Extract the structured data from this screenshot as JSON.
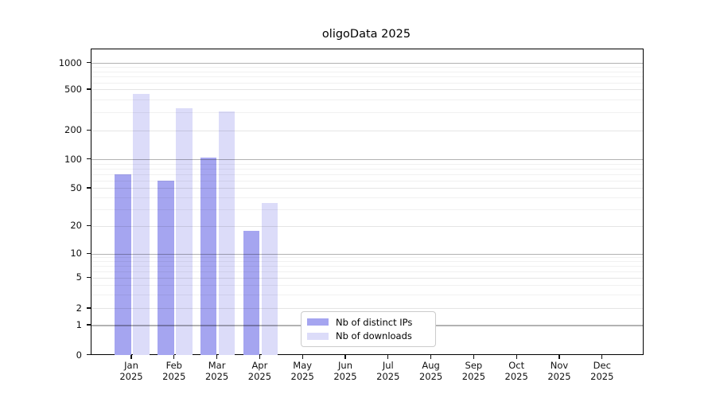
{
  "figure": {
    "background": "#ffffff"
  },
  "chart_data": {
    "type": "bar",
    "title": "oligoData 2025",
    "scale": "symlog",
    "categories": [
      "Jan",
      "Feb",
      "Mar",
      "Apr",
      "May",
      "Jun",
      "Jul",
      "Aug",
      "Sep",
      "Oct",
      "Nov",
      "Dec"
    ],
    "category_year": "2025",
    "series": [
      {
        "name": "Nb of distinct IPs",
        "color": "#a5a5f0",
        "values": [
          70,
          60,
          105,
          18,
          0,
          0,
          0,
          0,
          0,
          0,
          0,
          0
        ]
      },
      {
        "name": "Nb of downloads",
        "color": "#dcdcf9",
        "values": [
          460,
          330,
          310,
          35,
          0,
          0,
          0,
          0,
          0,
          0,
          0,
          0
        ]
      }
    ],
    "yticks": [
      0,
      1,
      2,
      5,
      10,
      20,
      50,
      100,
      200,
      500,
      1000
    ],
    "ylim": [
      0,
      1400
    ],
    "xlabel": "",
    "ylabel": "",
    "grid": true,
    "grid_above_bars": true,
    "legend_position": "inside-bottom-center",
    "legend_entries": [
      "Nb of distinct IPs",
      "Nb of downloads"
    ]
  }
}
